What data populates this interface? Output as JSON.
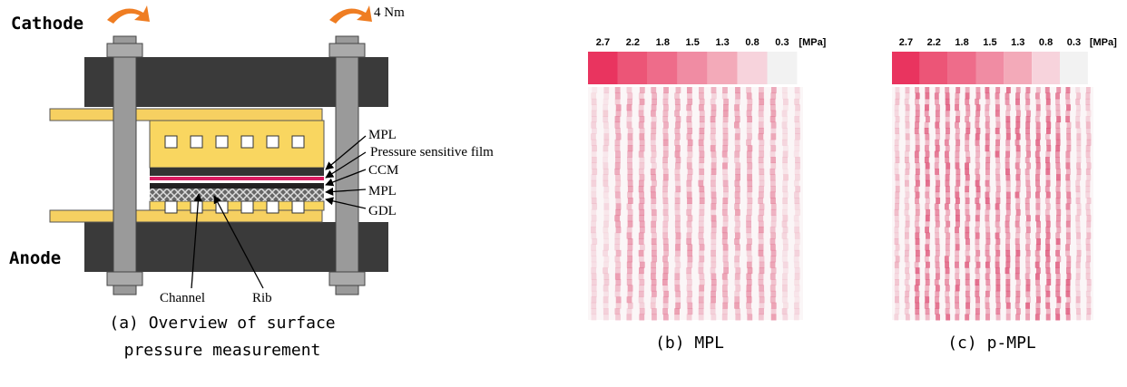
{
  "panel_a": {
    "torque": "4 Nm",
    "cathode": "Cathode",
    "anode": "Anode",
    "layers": [
      "MPL",
      "Pressure sensitive film",
      "CCM",
      "MPL",
      "GDL"
    ],
    "channel": "Channel",
    "rib": "Rib",
    "caption": [
      "(a) Overview of surface",
      "pressure measurement"
    ]
  },
  "scale": {
    "unit": "[MPa]",
    "levels": [
      {
        "value": 2.7,
        "color": "#e9345f"
      },
      {
        "value": 2.2,
        "color": "#ec5577"
      },
      {
        "value": 1.8,
        "color": "#ee6c8a"
      },
      {
        "value": 1.5,
        "color": "#f08ca3"
      },
      {
        "value": 1.3,
        "color": "#f3aab9"
      },
      {
        "value": 0.8,
        "color": "#f7d3dc"
      },
      {
        "value": 0.3,
        "color": "#f2f2f2"
      }
    ]
  },
  "panel_b": {
    "caption": "(b) MPL"
  },
  "panel_c": {
    "caption": "(c) p-MPL"
  }
}
